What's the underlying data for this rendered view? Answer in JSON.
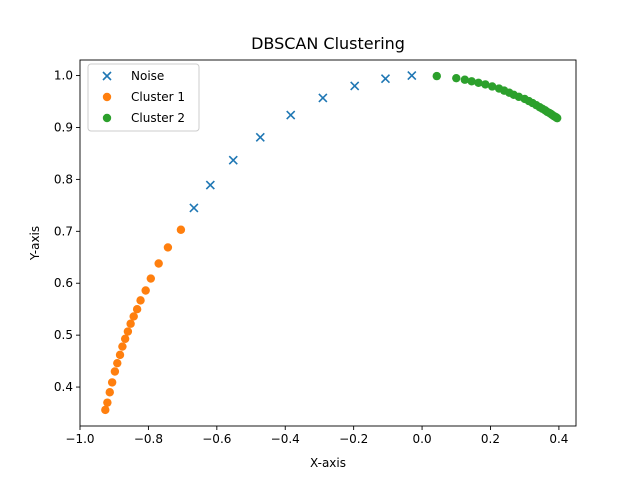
{
  "chart_data": {
    "type": "scatter",
    "title": "DBSCAN Clustering",
    "xlabel": "X-axis",
    "ylabel": "Y-axis",
    "xlim": [
      -1.0,
      0.45
    ],
    "ylim": [
      0.325,
      1.03
    ],
    "xticks": [
      -1.0,
      -0.8,
      -0.6,
      -0.4,
      -0.2,
      0.0,
      0.2,
      0.4
    ],
    "xtick_labels": [
      "−1.0",
      "−0.8",
      "−0.6",
      "−0.4",
      "−0.2",
      "0.0",
      "0.2",
      "0.4"
    ],
    "yticks": [
      0.4,
      0.5,
      0.6,
      0.7,
      0.8,
      0.9,
      1.0
    ],
    "ytick_labels": [
      "0.4",
      "0.5",
      "0.6",
      "0.7",
      "0.8",
      "0.9",
      "1.0"
    ],
    "grid": false,
    "legend_position": "top-left",
    "series": [
      {
        "name": "Noise",
        "marker": "x",
        "color": "#1f77b4",
        "points": [
          [
            -0.667,
            0.745
          ],
          [
            -0.619,
            0.789
          ],
          [
            -0.552,
            0.837
          ],
          [
            -0.473,
            0.881
          ],
          [
            -0.384,
            0.924
          ],
          [
            -0.29,
            0.957
          ],
          [
            -0.197,
            0.98
          ],
          [
            -0.107,
            0.994
          ],
          [
            -0.03,
            1.0
          ]
        ]
      },
      {
        "name": "Cluster 1",
        "marker": "o",
        "color": "#ff7f0e",
        "points": [
          [
            -0.705,
            0.703
          ],
          [
            -0.743,
            0.669
          ],
          [
            -0.77,
            0.638
          ],
          [
            -0.793,
            0.609
          ],
          [
            -0.808,
            0.586
          ],
          [
            -0.823,
            0.567
          ],
          [
            -0.833,
            0.55
          ],
          [
            -0.843,
            0.536
          ],
          [
            -0.852,
            0.522
          ],
          [
            -0.86,
            0.507
          ],
          [
            -0.868,
            0.493
          ],
          [
            -0.876,
            0.478
          ],
          [
            -0.883,
            0.462
          ],
          [
            -0.891,
            0.446
          ],
          [
            -0.898,
            0.43
          ],
          [
            -0.906,
            0.409
          ],
          [
            -0.913,
            0.39
          ],
          [
            -0.92,
            0.37
          ],
          [
            -0.926,
            0.356
          ]
        ]
      },
      {
        "name": "Cluster 2",
        "marker": "o",
        "color": "#2ca02c",
        "points": [
          [
            0.043,
            0.999
          ],
          [
            0.1,
            0.995
          ],
          [
            0.125,
            0.992
          ],
          [
            0.145,
            0.989
          ],
          [
            0.165,
            0.986
          ],
          [
            0.185,
            0.983
          ],
          [
            0.205,
            0.979
          ],
          [
            0.225,
            0.975
          ],
          [
            0.24,
            0.971
          ],
          [
            0.255,
            0.967
          ],
          [
            0.268,
            0.963
          ],
          [
            0.283,
            0.959
          ],
          [
            0.3,
            0.955
          ],
          [
            0.312,
            0.951
          ],
          [
            0.323,
            0.947
          ],
          [
            0.334,
            0.943
          ],
          [
            0.344,
            0.939
          ],
          [
            0.352,
            0.936
          ],
          [
            0.36,
            0.933
          ],
          [
            0.366,
            0.93
          ],
          [
            0.372,
            0.928
          ],
          [
            0.377,
            0.926
          ],
          [
            0.381,
            0.924
          ],
          [
            0.385,
            0.922
          ],
          [
            0.388,
            0.921
          ],
          [
            0.391,
            0.92
          ],
          [
            0.393,
            0.919
          ],
          [
            0.395,
            0.918
          ]
        ]
      }
    ]
  }
}
